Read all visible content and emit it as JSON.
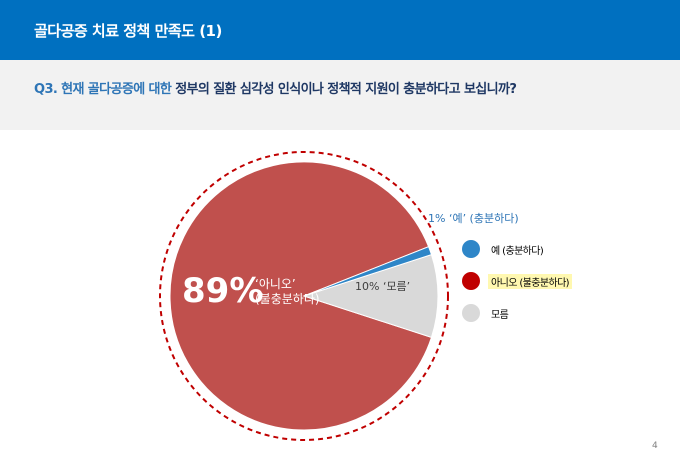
{
  "header": {
    "title": "골다공증 치료 정책 만족도 (1)"
  },
  "question": {
    "part1": "Q3. 현재 골다공증에 대한 ",
    "part2": "정부의 질환 심각성 인식이나 정책적 지원이 충분하다고 보십니까?"
  },
  "colors": {
    "header": "#0070c0",
    "yes": "#2e86c8",
    "no": "#c0504d",
    "unknown": "#d9d9d9",
    "dashed_ring": "#c00000",
    "legend_no_dot": "#c00000"
  },
  "chart_data": {
    "type": "pie",
    "slices": [
      {
        "key": "yes",
        "label": "1% ‘예’ (충분하다)",
        "value": 1
      },
      {
        "key": "unknown",
        "label": "10% ‘모름’",
        "value": 10
      },
      {
        "key": "no",
        "label_big": "89%",
        "label_sub1": "‘아니오’",
        "label_sub2": "(불충분하다)",
        "value": 89
      }
    ],
    "legend": [
      {
        "key": "yes",
        "label": "예 (충분하다)"
      },
      {
        "key": "no",
        "label": "아니오 (불충분하다)"
      },
      {
        "key": "unknown",
        "label": "모름"
      }
    ],
    "legend_placement": "right"
  },
  "page_number": "4"
}
